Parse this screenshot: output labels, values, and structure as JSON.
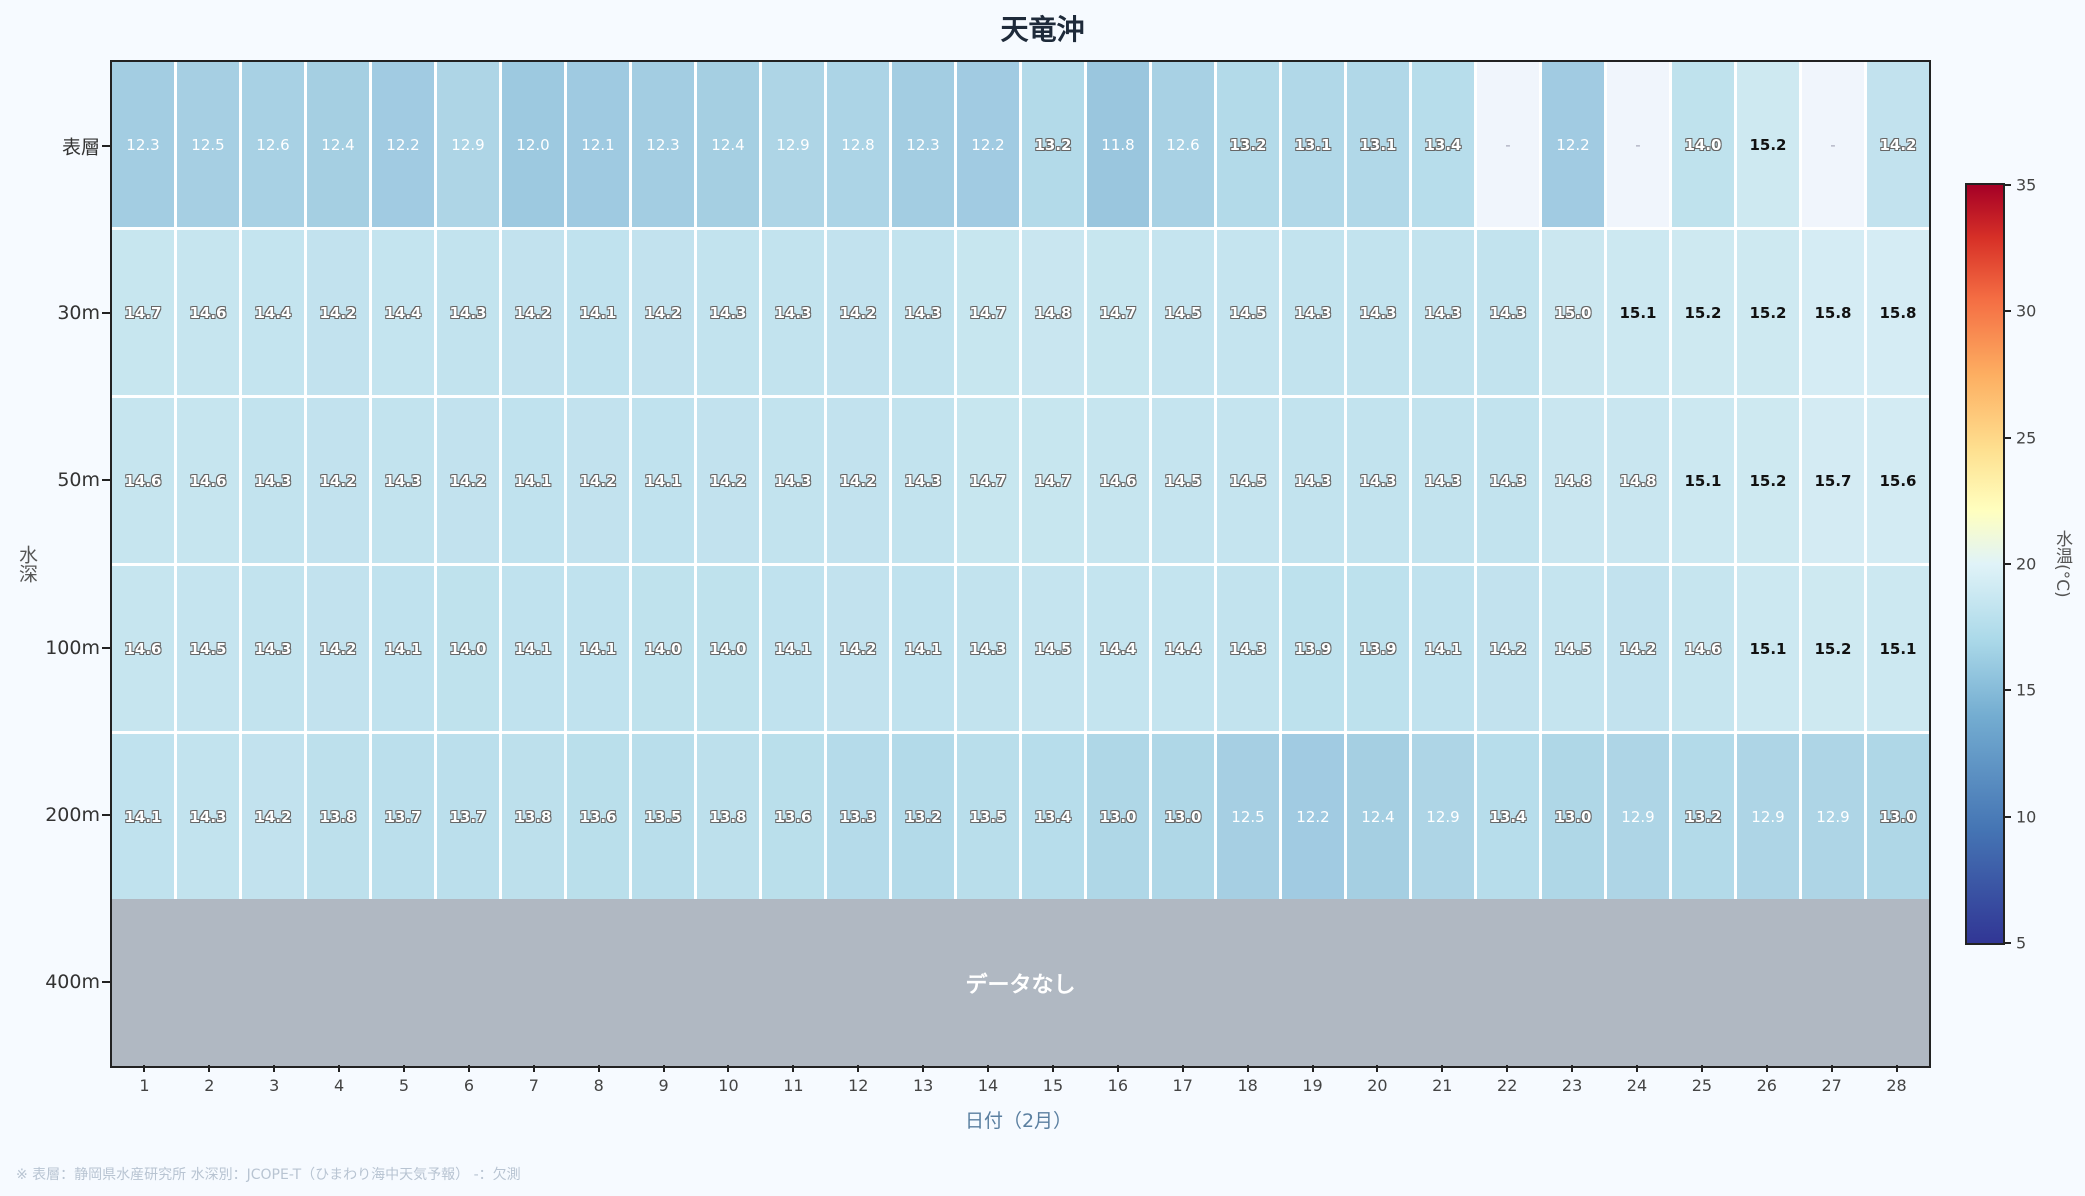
{
  "title": "天竜沖",
  "xlabel": "日付（2月）",
  "ylabel": "水深",
  "nodata_label": "データなし",
  "colorbar": {
    "label": "水温(°C)",
    "ticks": [
      "35",
      "30",
      "25",
      "20",
      "15",
      "10",
      "5"
    ],
    "min": 5,
    "max": 35
  },
  "footer": "※ 表層：静岡県水産研究所 水深別：JCOPE-T（ひまわり海中天気予報） -：欠測",
  "missing_symbol": "-",
  "chart_data": {
    "type": "heatmap",
    "title": "天竜沖",
    "xlabel": "日付（2月）",
    "ylabel": "水深",
    "colorbar_label": "水温(°C)",
    "colorbar_range": [
      5,
      35
    ],
    "colormap": "RdYlBu_r",
    "x": [
      "1",
      "2",
      "3",
      "4",
      "5",
      "6",
      "7",
      "8",
      "9",
      "10",
      "11",
      "12",
      "13",
      "14",
      "15",
      "16",
      "17",
      "18",
      "19",
      "20",
      "21",
      "22",
      "23",
      "24",
      "25",
      "26",
      "27",
      "28"
    ],
    "y": [
      "表層",
      "30m",
      "50m",
      "100m",
      "200m",
      "400m"
    ],
    "values": [
      [
        12.3,
        12.5,
        12.6,
        12.4,
        12.2,
        12.9,
        12.0,
        12.1,
        12.3,
        12.4,
        12.9,
        12.8,
        12.3,
        12.2,
        13.2,
        11.8,
        12.6,
        13.2,
        13.1,
        13.1,
        13.4,
        null,
        12.2,
        null,
        14.0,
        15.2,
        null,
        14.2
      ],
      [
        14.7,
        14.6,
        14.4,
        14.2,
        14.4,
        14.3,
        14.2,
        14.1,
        14.2,
        14.3,
        14.3,
        14.2,
        14.3,
        14.7,
        14.8,
        14.7,
        14.5,
        14.5,
        14.3,
        14.3,
        14.3,
        14.3,
        15.0,
        15.1,
        15.2,
        15.2,
        15.8,
        15.8
      ],
      [
        14.6,
        14.6,
        14.3,
        14.2,
        14.3,
        14.2,
        14.1,
        14.2,
        14.1,
        14.2,
        14.3,
        14.2,
        14.3,
        14.7,
        14.7,
        14.6,
        14.5,
        14.5,
        14.3,
        14.3,
        14.3,
        14.3,
        14.8,
        14.8,
        15.1,
        15.2,
        15.7,
        15.6
      ],
      [
        14.6,
        14.5,
        14.3,
        14.2,
        14.1,
        14.0,
        14.1,
        14.1,
        14.0,
        14.0,
        14.1,
        14.2,
        14.1,
        14.3,
        14.5,
        14.4,
        14.4,
        14.3,
        13.9,
        13.9,
        14.1,
        14.2,
        14.5,
        14.2,
        14.6,
        15.1,
        15.2,
        15.1
      ],
      [
        14.1,
        14.3,
        14.2,
        13.8,
        13.7,
        13.7,
        13.8,
        13.6,
        13.5,
        13.8,
        13.6,
        13.3,
        13.2,
        13.5,
        13.4,
        13.0,
        13.0,
        12.5,
        12.2,
        12.4,
        12.9,
        13.4,
        13.0,
        12.9,
        13.2,
        12.9,
        12.9,
        13.0
      ],
      [
        null,
        null,
        null,
        null,
        null,
        null,
        null,
        null,
        null,
        null,
        null,
        null,
        null,
        null,
        null,
        null,
        null,
        null,
        null,
        null,
        null,
        null,
        null,
        null,
        null,
        null,
        null,
        null
      ]
    ],
    "annotations": [
      "データなし (400m)",
      "- = 欠測"
    ]
  }
}
